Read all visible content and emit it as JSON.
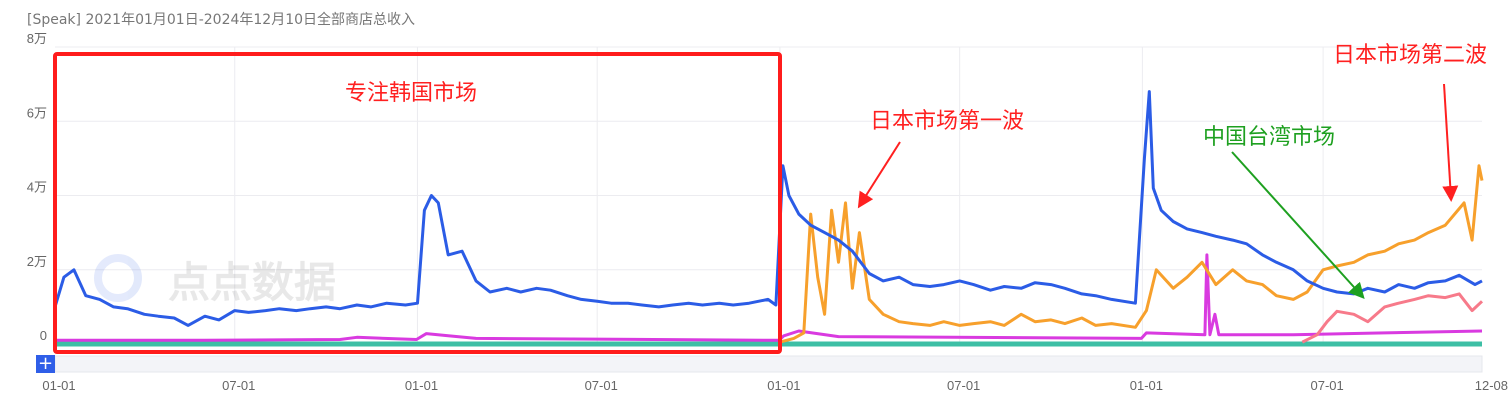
{
  "title": "[Speak] 2021年01月01日-2024年12月10日全部商店总收入",
  "zoom_button": "+",
  "watermark": "点点数据",
  "chart_data": {
    "type": "line",
    "title": "[Speak] 2021年01月01日-2024年12月10日全部商店总收入",
    "xlim": [
      "2021-01-01",
      "2024-12-08"
    ],
    "ylim": [
      0,
      80000
    ],
    "grid": true,
    "x_ticks": [
      {
        "date": "2021-01-01",
        "label": "01-01"
      },
      {
        "date": "2021-07-01",
        "label": "07-01"
      },
      {
        "date": "2022-01-01",
        "label": "01-01"
      },
      {
        "date": "2022-07-01",
        "label": "07-01"
      },
      {
        "date": "2023-01-01",
        "label": "01-01"
      },
      {
        "date": "2023-07-01",
        "label": "07-01"
      },
      {
        "date": "2024-01-01",
        "label": "01-01"
      },
      {
        "date": "2024-07-01",
        "label": "07-01"
      },
      {
        "date": "2024-12-08",
        "label": "12-08"
      }
    ],
    "y_ticks": [
      {
        "value": 0,
        "label": "0"
      },
      {
        "value": 20000,
        "label": "2万"
      },
      {
        "value": 40000,
        "label": "4万"
      },
      {
        "value": 60000,
        "label": "6万"
      },
      {
        "value": 80000,
        "label": "8万"
      }
    ],
    "series": [
      {
        "color": "#2b5ce6",
        "points": [
          [
            "2021-01-01",
            10000
          ],
          [
            "2021-01-10",
            18000
          ],
          [
            "2021-01-20",
            20000
          ],
          [
            "2021-02-01",
            13000
          ],
          [
            "2021-02-15",
            12000
          ],
          [
            "2021-03-01",
            10000
          ],
          [
            "2021-03-15",
            9500
          ],
          [
            "2021-04-01",
            8000
          ],
          [
            "2021-04-15",
            7500
          ],
          [
            "2021-05-01",
            7000
          ],
          [
            "2021-05-15",
            5000
          ],
          [
            "2021-06-01",
            7500
          ],
          [
            "2021-06-15",
            6500
          ],
          [
            "2021-07-01",
            9000
          ],
          [
            "2021-07-15",
            8500
          ],
          [
            "2021-08-01",
            9000
          ],
          [
            "2021-08-15",
            9500
          ],
          [
            "2021-09-01",
            9000
          ],
          [
            "2021-09-15",
            9500
          ],
          [
            "2021-10-01",
            10000
          ],
          [
            "2021-10-15",
            9500
          ],
          [
            "2021-11-01",
            10500
          ],
          [
            "2021-11-15",
            10000
          ],
          [
            "2021-12-01",
            11000
          ],
          [
            "2021-12-20",
            10500
          ],
          [
            "2022-01-01",
            11000
          ],
          [
            "2022-01-08",
            36000
          ],
          [
            "2022-01-15",
            40000
          ],
          [
            "2022-01-22",
            38000
          ],
          [
            "2022-02-01",
            24000
          ],
          [
            "2022-02-15",
            25000
          ],
          [
            "2022-03-01",
            17000
          ],
          [
            "2022-03-15",
            14000
          ],
          [
            "2022-04-01",
            15000
          ],
          [
            "2022-04-15",
            14000
          ],
          [
            "2022-05-01",
            15000
          ],
          [
            "2022-05-15",
            14500
          ],
          [
            "2022-06-01",
            13000
          ],
          [
            "2022-06-15",
            12000
          ],
          [
            "2022-07-01",
            11500
          ],
          [
            "2022-07-15",
            11000
          ],
          [
            "2022-08-01",
            11000
          ],
          [
            "2022-08-15",
            10500
          ],
          [
            "2022-09-01",
            10000
          ],
          [
            "2022-09-15",
            10500
          ],
          [
            "2022-10-01",
            11000
          ],
          [
            "2022-10-15",
            10500
          ],
          [
            "2022-11-01",
            11000
          ],
          [
            "2022-11-15",
            10500
          ],
          [
            "2022-12-01",
            11000
          ],
          [
            "2022-12-20",
            12000
          ],
          [
            "2022-12-28",
            10500
          ],
          [
            "2023-01-04",
            48000
          ],
          [
            "2023-01-10",
            40000
          ],
          [
            "2023-01-20",
            35000
          ],
          [
            "2023-02-01",
            32000
          ],
          [
            "2023-02-15",
            30000
          ],
          [
            "2023-03-01",
            28000
          ],
          [
            "2023-03-15",
            25000
          ],
          [
            "2023-04-01",
            19000
          ],
          [
            "2023-04-15",
            17000
          ],
          [
            "2023-05-01",
            18000
          ],
          [
            "2023-05-15",
            16000
          ],
          [
            "2023-06-01",
            15500
          ],
          [
            "2023-06-15",
            16000
          ],
          [
            "2023-07-01",
            17000
          ],
          [
            "2023-07-15",
            16000
          ],
          [
            "2023-08-01",
            14500
          ],
          [
            "2023-08-15",
            15500
          ],
          [
            "2023-09-01",
            15000
          ],
          [
            "2023-09-15",
            16500
          ],
          [
            "2023-10-01",
            16000
          ],
          [
            "2023-10-15",
            15000
          ],
          [
            "2023-11-01",
            13500
          ],
          [
            "2023-11-15",
            13000
          ],
          [
            "2023-12-01",
            12000
          ],
          [
            "2023-12-25",
            11000
          ],
          [
            "2024-01-03",
            50000
          ],
          [
            "2024-01-08",
            68000
          ],
          [
            "2024-01-12",
            42000
          ],
          [
            "2024-01-20",
            36000
          ],
          [
            "2024-02-01",
            33000
          ],
          [
            "2024-02-15",
            31000
          ],
          [
            "2024-03-01",
            30000
          ],
          [
            "2024-03-15",
            29000
          ],
          [
            "2024-04-01",
            28000
          ],
          [
            "2024-04-15",
            27000
          ],
          [
            "2024-05-01",
            24000
          ],
          [
            "2024-05-15",
            22000
          ],
          [
            "2024-06-01",
            20000
          ],
          [
            "2024-06-15",
            17000
          ],
          [
            "2024-07-01",
            15000
          ],
          [
            "2024-07-15",
            14000
          ],
          [
            "2024-08-01",
            13500
          ],
          [
            "2024-08-15",
            15000
          ],
          [
            "2024-09-01",
            14000
          ],
          [
            "2024-09-15",
            16000
          ],
          [
            "2024-10-01",
            15000
          ],
          [
            "2024-10-15",
            16500
          ],
          [
            "2024-11-01",
            17000
          ],
          [
            "2024-11-15",
            18500
          ],
          [
            "2024-12-01",
            16000
          ],
          [
            "2024-12-08",
            17000
          ]
        ]
      },
      {
        "color": "#f7a02c",
        "points": [
          [
            "2023-01-01",
            500
          ],
          [
            "2023-01-15",
            1500
          ],
          [
            "2023-01-25",
            3000
          ],
          [
            "2023-02-01",
            35000
          ],
          [
            "2023-02-08",
            18000
          ],
          [
            "2023-02-15",
            8000
          ],
          [
            "2023-02-22",
            36000
          ],
          [
            "2023-03-01",
            22000
          ],
          [
            "2023-03-08",
            38000
          ],
          [
            "2023-03-15",
            15000
          ],
          [
            "2023-03-22",
            30000
          ],
          [
            "2023-04-01",
            12000
          ],
          [
            "2023-04-15",
            8000
          ],
          [
            "2023-05-01",
            6000
          ],
          [
            "2023-05-15",
            5500
          ],
          [
            "2023-06-01",
            5000
          ],
          [
            "2023-06-15",
            6000
          ],
          [
            "2023-07-01",
            5000
          ],
          [
            "2023-07-15",
            5500
          ],
          [
            "2023-08-01",
            6000
          ],
          [
            "2023-08-15",
            5000
          ],
          [
            "2023-09-01",
            8000
          ],
          [
            "2023-09-15",
            6000
          ],
          [
            "2023-10-01",
            6500
          ],
          [
            "2023-10-15",
            5500
          ],
          [
            "2023-11-01",
            7000
          ],
          [
            "2023-11-15",
            5000
          ],
          [
            "2023-12-01",
            5500
          ],
          [
            "2023-12-25",
            4500
          ],
          [
            "2024-01-05",
            9000
          ],
          [
            "2024-01-15",
            20000
          ],
          [
            "2024-02-01",
            15000
          ],
          [
            "2024-02-15",
            18000
          ],
          [
            "2024-03-01",
            22000
          ],
          [
            "2024-03-15",
            16000
          ],
          [
            "2024-04-01",
            20000
          ],
          [
            "2024-04-15",
            17000
          ],
          [
            "2024-05-01",
            16000
          ],
          [
            "2024-05-15",
            13000
          ],
          [
            "2024-06-01",
            12000
          ],
          [
            "2024-06-15",
            14000
          ],
          [
            "2024-07-01",
            20000
          ],
          [
            "2024-07-15",
            21000
          ],
          [
            "2024-08-01",
            22000
          ],
          [
            "2024-08-15",
            24000
          ],
          [
            "2024-09-01",
            25000
          ],
          [
            "2024-09-15",
            27000
          ],
          [
            "2024-10-01",
            28000
          ],
          [
            "2024-10-15",
            30000
          ],
          [
            "2024-11-01",
            32000
          ],
          [
            "2024-11-20",
            38000
          ],
          [
            "2024-11-28",
            28000
          ],
          [
            "2024-12-05",
            48000
          ],
          [
            "2024-12-08",
            44000
          ]
        ]
      },
      {
        "color": "#f77a8a",
        "points": [
          [
            "2024-06-10",
            500
          ],
          [
            "2024-06-25",
            2500
          ],
          [
            "2024-07-05",
            6000
          ],
          [
            "2024-07-15",
            8800
          ],
          [
            "2024-08-01",
            8000
          ],
          [
            "2024-08-15",
            6000
          ],
          [
            "2024-09-01",
            10000
          ],
          [
            "2024-09-15",
            11000
          ],
          [
            "2024-10-01",
            12000
          ],
          [
            "2024-10-15",
            13000
          ],
          [
            "2024-11-01",
            12500
          ],
          [
            "2024-11-15",
            13500
          ],
          [
            "2024-11-28",
            9000
          ],
          [
            "2024-12-08",
            11500
          ]
        ]
      },
      {
        "color": "#d93ae0",
        "points": [
          [
            "2021-01-01",
            1000
          ],
          [
            "2021-06-01",
            1000
          ],
          [
            "2021-10-15",
            1200
          ],
          [
            "2021-11-01",
            1800
          ],
          [
            "2021-12-31",
            1200
          ],
          [
            "2022-01-10",
            2800
          ],
          [
            "2022-02-01",
            2200
          ],
          [
            "2022-03-01",
            1500
          ],
          [
            "2022-12-31",
            1000
          ],
          [
            "2023-01-05",
            2200
          ],
          [
            "2023-01-20",
            3500
          ],
          [
            "2023-03-01",
            2000
          ],
          [
            "2023-12-31",
            1500
          ],
          [
            "2024-01-05",
            3000
          ],
          [
            "2024-03-04",
            2500
          ],
          [
            "2024-03-06",
            24000
          ],
          [
            "2024-03-09",
            2500
          ],
          [
            "2024-03-14",
            8000
          ],
          [
            "2024-03-18",
            2500
          ],
          [
            "2024-06-01",
            2500
          ],
          [
            "2024-09-01",
            3000
          ],
          [
            "2024-12-08",
            3500
          ]
        ]
      },
      {
        "color": "#3dbfa5",
        "points": [
          [
            "2021-01-01",
            0
          ],
          [
            "2024-12-08",
            0
          ]
        ]
      }
    ],
    "annotations": [
      {
        "text": "专注韩国市场",
        "color": "#ff2020"
      },
      {
        "text": "日本市场第一波",
        "color": "#ff2020"
      },
      {
        "text": "中国台湾市场",
        "color": "#1ea020"
      },
      {
        "text": "日本市场第二波",
        "color": "#ff2020"
      }
    ]
  }
}
